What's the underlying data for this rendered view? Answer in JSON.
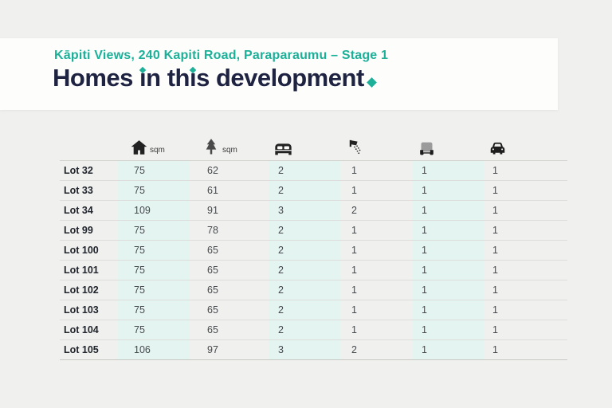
{
  "header": {
    "subtitle": "Kāpiti Views, 240 Kapiti Road, Paraparaumu – Stage 1",
    "title": "Homes in this development",
    "title_period": "."
  },
  "colors": {
    "accent_teal": "#1CB098",
    "title_navy": "#1E2342",
    "stripe_mint": "#E4F4F1",
    "page_background": "#F0F0EE"
  },
  "table": {
    "columns": [
      {
        "icon": "house-icon",
        "unit": "sqm"
      },
      {
        "icon": "tree-icon",
        "unit": "sqm"
      },
      {
        "icon": "bed-icon",
        "unit": ""
      },
      {
        "icon": "shower-icon",
        "unit": ""
      },
      {
        "icon": "garage-icon",
        "unit": ""
      },
      {
        "icon": "car-icon",
        "unit": ""
      }
    ],
    "rows": [
      {
        "lot": "Lot 32",
        "values": [
          "75",
          "62",
          "2",
          "1",
          "1",
          "1"
        ]
      },
      {
        "lot": "Lot 33",
        "values": [
          "75",
          "61",
          "2",
          "1",
          "1",
          "1"
        ]
      },
      {
        "lot": "Lot 34",
        "values": [
          "109",
          "91",
          "3",
          "2",
          "1",
          "1"
        ]
      },
      {
        "lot": "Lot 99",
        "values": [
          "75",
          "78",
          "2",
          "1",
          "1",
          "1"
        ]
      },
      {
        "lot": "Lot 100",
        "values": [
          "75",
          "65",
          "2",
          "1",
          "1",
          "1"
        ]
      },
      {
        "lot": "Lot 101",
        "values": [
          "75",
          "65",
          "2",
          "1",
          "1",
          "1"
        ]
      },
      {
        "lot": "Lot 102",
        "values": [
          "75",
          "65",
          "2",
          "1",
          "1",
          "1"
        ]
      },
      {
        "lot": "Lot 103",
        "values": [
          "75",
          "65",
          "2",
          "1",
          "1",
          "1"
        ]
      },
      {
        "lot": "Lot 104",
        "values": [
          "75",
          "65",
          "2",
          "1",
          "1",
          "1"
        ]
      },
      {
        "lot": "Lot 105",
        "values": [
          "106",
          "97",
          "3",
          "2",
          "1",
          "1"
        ]
      }
    ]
  }
}
